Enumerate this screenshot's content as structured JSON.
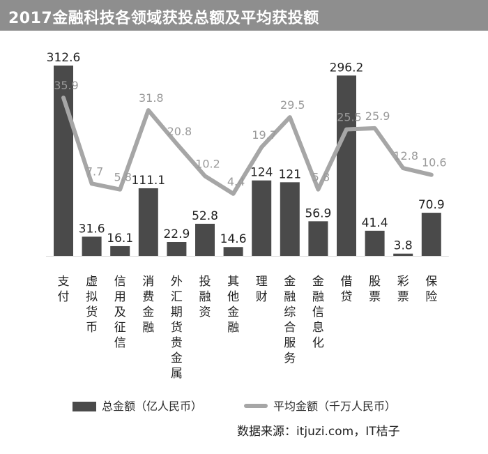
{
  "header": {
    "title": "2017金融科技各领域获投总额及平均获投额"
  },
  "source": "数据来源：itjuzi.com，IT桔子",
  "chart_data": {
    "type": "bar",
    "title": "2017金融科技各领域获投总额及平均获投额",
    "categories": [
      "支付",
      "虚拟货币",
      "信用及征信",
      "消费金融",
      "外汇期货贵金属",
      "投融资",
      "其他金融",
      "理财",
      "金融综合服务",
      "金融信息化",
      "借贷",
      "股票",
      "彩票",
      "保险"
    ],
    "series": [
      {
        "name": "总金额（亿人民币）",
        "type": "bar",
        "color": "#4a4a4a",
        "values": [
          312.6,
          31.6,
          16.1,
          111.1,
          22.9,
          52.8,
          14.6,
          124,
          121,
          56.9,
          296.2,
          41.4,
          3.8,
          70.9
        ]
      },
      {
        "name": "平均金额（千万人民币）",
        "type": "line",
        "color": "#a6a6a6",
        "values": [
          35.9,
          7.7,
          5.8,
          31.8,
          20.8,
          10.2,
          4.4,
          19.7,
          29.5,
          5.8,
          25.5,
          25.9,
          12.8,
          10.6
        ]
      }
    ],
    "legend": {
      "position": "bottom"
    },
    "grid": false
  },
  "legend": {
    "bar_label": "总金额（亿人民币）",
    "line_label": "平均金额（千万人民币）"
  }
}
